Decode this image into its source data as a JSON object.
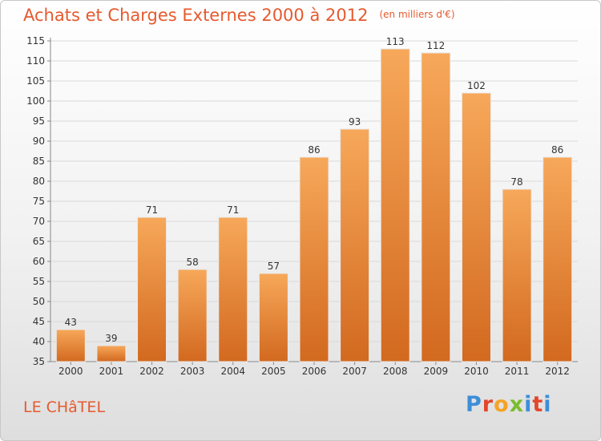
{
  "header": {
    "title": "Achats et Charges Externes 2000 à 2012",
    "subtitle": "(en milliers d'€)"
  },
  "footer": {
    "commune": "LE CHâTEL",
    "logo_letters": [
      "P",
      "r",
      "o",
      "x",
      "i",
      "t",
      "i"
    ]
  },
  "colors": {
    "title": "#e65a2e",
    "bar_light": "#f7a85a",
    "bar_dark": "#d2691f",
    "grid": "#d9d9d9"
  },
  "chart_data": {
    "type": "bar",
    "title": "Achats et Charges Externes 2000 à 2012",
    "subtitle": "(en milliers d'€)",
    "categories": [
      "2000",
      "2001",
      "2002",
      "2003",
      "2004",
      "2005",
      "2006",
      "2007",
      "2008",
      "2009",
      "2010",
      "2011",
      "2012"
    ],
    "values": [
      43,
      39,
      71,
      58,
      71,
      57,
      86,
      93,
      113,
      112,
      102,
      78,
      86
    ],
    "ylim": [
      35,
      115
    ],
    "yticks": [
      35,
      40,
      45,
      50,
      55,
      60,
      65,
      70,
      75,
      80,
      85,
      90,
      95,
      100,
      105,
      110,
      115
    ],
    "grid": true,
    "data_labels": true
  }
}
